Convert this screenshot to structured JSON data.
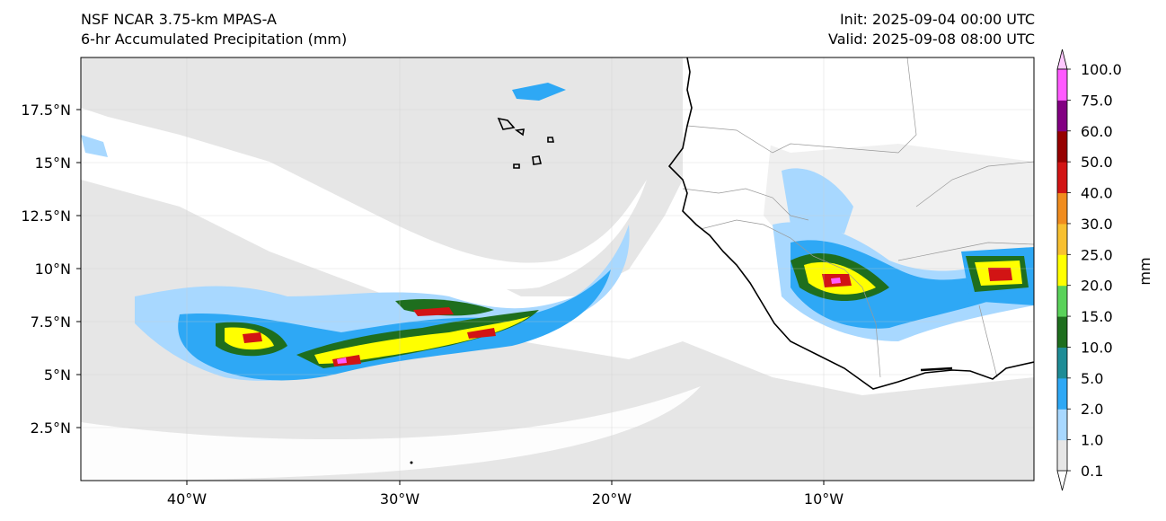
{
  "header": {
    "model": "NSF NCAR 3.75-km MPAS-A",
    "field": "6-hr Accumulated Precipitation (mm)",
    "init": "Init: 2025-09-04 00:00 UTC",
    "valid": "Valid: 2025-09-08 08:00 UTC"
  },
  "axes": {
    "lon_ticks": [
      "40°W",
      "30°W",
      "20°W",
      "10°W"
    ],
    "lat_ticks": [
      "17.5°N",
      "15°N",
      "12.5°N",
      "10°N",
      "7.5°N",
      "5°N",
      "2.5°N"
    ]
  },
  "colorbar": {
    "unit": "mm",
    "levels": [
      "0.1",
      "1.0",
      "2.0",
      "5.0",
      "10.0",
      "15.0",
      "20.0",
      "25.0",
      "30.0",
      "40.0",
      "50.0",
      "60.0",
      "75.0",
      "100.0"
    ],
    "colors": [
      "#e6e6e6",
      "#a8d8ff",
      "#2ea8f5",
      "#1e8c96",
      "#1e6e1e",
      "#5ad25a",
      "#ffff00",
      "#f8c030",
      "#f08c1e",
      "#d21414",
      "#960000",
      "#820082",
      "#ff5aff"
    ]
  },
  "colors": {
    "land": "#ffffff",
    "ocean_light": "#e6e6e6",
    "coast": "#000000",
    "border": "#999999"
  }
}
